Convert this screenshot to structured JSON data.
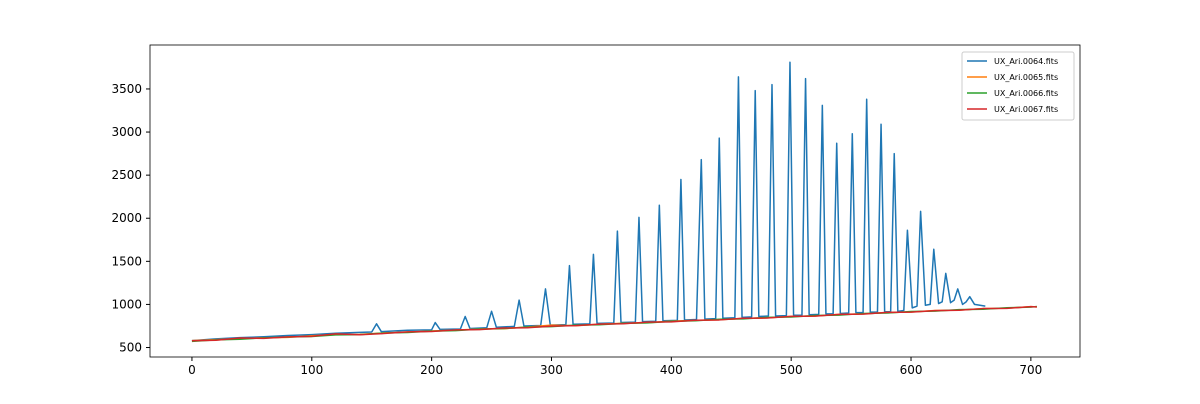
{
  "chart_data": {
    "type": "line",
    "xlim": [
      -35,
      741
    ],
    "ylim": [
      390,
      4010
    ],
    "xticks": [
      0,
      100,
      200,
      300,
      400,
      500,
      600,
      700
    ],
    "yticks": [
      500,
      1000,
      1500,
      2000,
      2500,
      3000,
      3500
    ],
    "grid": false,
    "legend": "upper right",
    "series": [
      {
        "name": "UX_Ari.0064.fits",
        "color": "#1f77b4",
        "x": [
          0,
          20,
          40,
          60,
          80,
          100,
          120,
          140,
          150,
          154,
          158,
          180,
          200,
          203,
          207,
          224,
          228,
          232,
          246,
          250,
          254,
          269,
          273,
          277,
          291,
          295,
          299,
          312,
          315,
          318,
          332,
          335,
          338,
          352,
          355,
          358,
          370,
          373,
          376,
          387,
          390,
          393,
          405,
          408,
          411,
          421,
          425,
          428,
          437,
          440,
          443,
          453,
          456,
          459,
          467,
          470,
          473,
          481,
          484,
          487,
          496,
          499,
          502,
          509,
          512,
          515,
          523,
          526,
          529,
          535,
          538,
          541,
          548,
          551,
          554,
          560,
          563,
          566,
          572,
          575,
          578,
          583,
          586,
          589,
          594,
          597,
          601,
          605,
          608,
          612,
          616,
          619,
          623,
          626,
          629,
          633,
          636,
          639,
          643,
          646,
          649,
          653,
          662
        ],
        "values": [
          580,
          600,
          615,
          625,
          640,
          650,
          665,
          675,
          680,
          775,
          685,
          700,
          705,
          790,
          710,
          715,
          860,
          720,
          730,
          920,
          735,
          745,
          1050,
          750,
          755,
          1180,
          760,
          765,
          1450,
          770,
          775,
          1580,
          780,
          785,
          1850,
          790,
          795,
          2010,
          800,
          805,
          2150,
          810,
          815,
          2450,
          820,
          825,
          2680,
          830,
          835,
          2930,
          840,
          845,
          3640,
          850,
          855,
          3480,
          860,
          865,
          3550,
          865,
          870,
          3810,
          875,
          875,
          3620,
          880,
          885,
          3310,
          890,
          890,
          2870,
          895,
          900,
          2980,
          905,
          905,
          3380,
          910,
          910,
          3090,
          915,
          915,
          2750,
          920,
          930,
          1860,
          960,
          980,
          2080,
          990,
          1000,
          1640,
          1010,
          1030,
          1360,
          1020,
          1050,
          1180,
          1000,
          1030,
          1090,
          1000,
          980
        ]
      },
      {
        "name": "UX_Ari.0065.fits",
        "color": "#ff7f0e",
        "x": [
          0,
          20,
          40,
          60,
          80,
          100,
          120,
          140,
          160,
          180,
          200,
          220,
          240,
          260,
          280,
          300,
          320,
          340,
          360,
          380,
          400,
          420,
          440,
          460,
          480,
          500,
          520,
          540,
          560,
          580,
          600,
          620,
          640,
          660,
          680,
          700,
          705
        ],
        "values": [
          580,
          592,
          603,
          612,
          618,
          636,
          650,
          652,
          668,
          680,
          692,
          702,
          715,
          718,
          738,
          760,
          752,
          770,
          782,
          788,
          806,
          815,
          822,
          838,
          844,
          862,
          866,
          884,
          890,
          906,
          912,
          930,
          934,
          952,
          956,
          975,
          972
        ]
      },
      {
        "name": "UX_Ari.0066.fits",
        "color": "#2ca02c",
        "x": [
          0,
          20,
          40,
          60,
          80,
          100,
          120,
          140,
          160,
          180,
          200,
          220,
          240,
          260,
          280,
          300,
          320,
          340,
          360,
          380,
          400,
          420,
          440,
          460,
          480,
          500,
          520,
          540,
          560,
          580,
          600,
          620,
          640,
          660,
          680,
          700,
          705
        ],
        "values": [
          572,
          588,
          596,
          612,
          622,
          628,
          646,
          650,
          668,
          674,
          690,
          696,
          714,
          720,
          736,
          742,
          760,
          764,
          780,
          786,
          804,
          810,
          828,
          832,
          850,
          854,
          872,
          876,
          894,
          900,
          918,
          922,
          940,
          944,
          962,
          968,
          976
        ]
      },
      {
        "name": "UX_Ari.0067.fits",
        "color": "#d62728",
        "x": [
          0,
          20,
          40,
          60,
          80,
          100,
          120,
          140,
          160,
          180,
          200,
          220,
          240,
          260,
          280,
          300,
          320,
          340,
          360,
          380,
          400,
          420,
          440,
          460,
          480,
          500,
          520,
          540,
          560,
          580,
          600,
          620,
          640,
          660,
          680,
          700,
          705
        ],
        "values": [
          578,
          584,
          610,
          606,
          624,
          630,
          658,
          648,
          662,
          682,
          686,
          704,
          708,
          726,
          730,
          748,
          754,
          772,
          776,
          794,
          798,
          816,
          820,
          840,
          842,
          862,
          864,
          884,
          888,
          908,
          910,
          928,
          932,
          952,
          954,
          974,
          970
        ]
      }
    ]
  }
}
